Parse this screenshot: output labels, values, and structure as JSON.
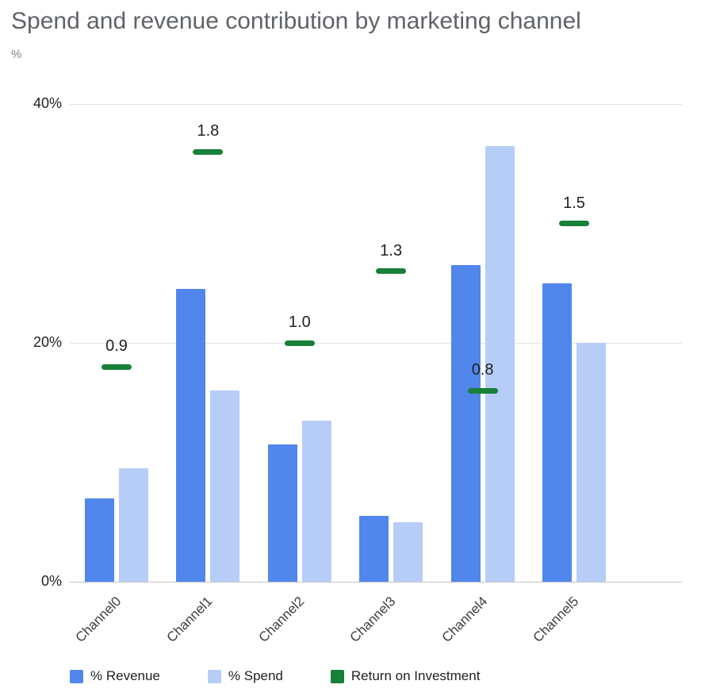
{
  "chart_data": {
    "type": "bar",
    "title": "Spend and revenue contribution by marketing channel",
    "ylabel": "%",
    "xlabel": "",
    "categories": [
      "Channel0",
      "Channel1",
      "Channel2",
      "Channel3",
      "Channel4",
      "Channel5"
    ],
    "series": [
      {
        "name": "% Revenue",
        "type": "bar",
        "color": "#5186EC",
        "values": [
          7,
          24.5,
          11.5,
          5.5,
          26.5,
          25
        ]
      },
      {
        "name": "% Spend",
        "type": "bar",
        "color": "#B6CDF8",
        "values": [
          9.5,
          16,
          13.5,
          5,
          36.5,
          20
        ]
      },
      {
        "name": "Return on Investment",
        "type": "dash-marker",
        "color": "#188038",
        "values": [
          0.9,
          1.8,
          1.0,
          1.3,
          0.8,
          1.5
        ],
        "labels": [
          "0.9",
          "1.8",
          "1.0",
          "1.3",
          "0.8",
          "1.5"
        ],
        "value_scale": 20
      }
    ],
    "ylim": [
      0,
      40
    ],
    "yticks": [
      {
        "value": 0,
        "label": "0%"
      },
      {
        "value": 20,
        "label": "20%"
      },
      {
        "value": 40,
        "label": "40%"
      }
    ],
    "grid": true,
    "legend_position": "bottom"
  }
}
